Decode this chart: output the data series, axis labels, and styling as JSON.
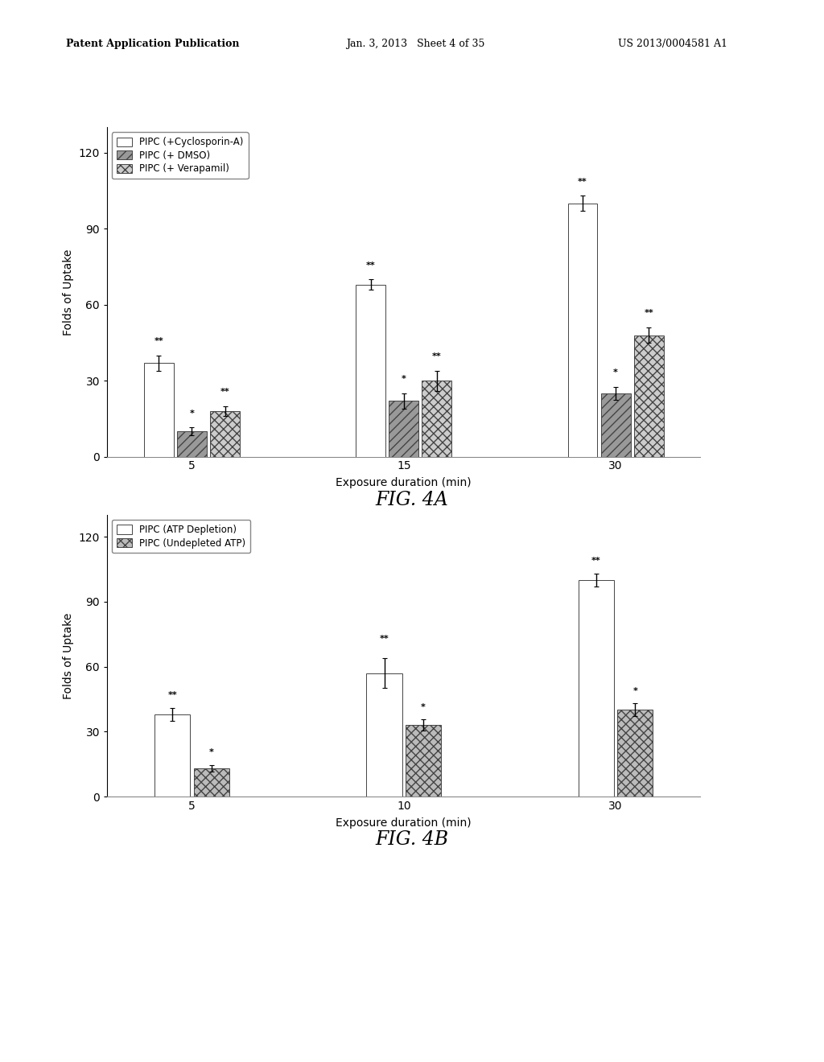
{
  "fig4a": {
    "title": "FIG. 4A",
    "xlabel": "Exposure duration (min)",
    "ylabel": "Folds of Uptake",
    "ylim": [
      0,
      130
    ],
    "yticks": [
      0,
      30,
      60,
      90,
      120
    ],
    "groups": [
      "5",
      "15",
      "30"
    ],
    "series": [
      {
        "label": "PIPC (+Cyclosporin-A)",
        "values": [
          37,
          68,
          100
        ],
        "errors": [
          3,
          2,
          3
        ],
        "color": "white",
        "hatch": "",
        "edgecolor": "#444444"
      },
      {
        "label": "PIPC (+ DMSO)",
        "values": [
          10,
          22,
          25
        ],
        "errors": [
          1.5,
          3,
          2.5
        ],
        "color": "#999999",
        "hatch": "///",
        "edgecolor": "#444444"
      },
      {
        "label": "PIPC (+ Verapamil)",
        "values": [
          18,
          30,
          48
        ],
        "errors": [
          2,
          4,
          3
        ],
        "color": "#cccccc",
        "hatch": "xxx",
        "edgecolor": "#444444"
      }
    ],
    "star_annotations": [
      {
        "group": 0,
        "series": 0,
        "text": "**",
        "yoffset": 4
      },
      {
        "group": 0,
        "series": 1,
        "text": "*",
        "yoffset": 4
      },
      {
        "group": 0,
        "series": 2,
        "text": "**",
        "yoffset": 4
      },
      {
        "group": 1,
        "series": 0,
        "text": "**",
        "yoffset": 4
      },
      {
        "group": 1,
        "series": 1,
        "text": "*",
        "yoffset": 4
      },
      {
        "group": 1,
        "series": 2,
        "text": "**",
        "yoffset": 4
      },
      {
        "group": 2,
        "series": 0,
        "text": "**",
        "yoffset": 4
      },
      {
        "group": 2,
        "series": 1,
        "text": "*",
        "yoffset": 4
      },
      {
        "group": 2,
        "series": 2,
        "text": "**",
        "yoffset": 4
      }
    ]
  },
  "fig4b": {
    "title": "FIG. 4B",
    "xlabel": "Exposure duration (min)",
    "ylabel": "Folds of Uptake",
    "ylim": [
      0,
      130
    ],
    "yticks": [
      0,
      30,
      60,
      90,
      120
    ],
    "groups": [
      "5",
      "10",
      "30"
    ],
    "series": [
      {
        "label": "PIPC (ATP Depletion)",
        "values": [
          38,
          57,
          100
        ],
        "errors": [
          3,
          7,
          3
        ],
        "color": "white",
        "hatch": "",
        "edgecolor": "#444444"
      },
      {
        "label": "PIPC (Undepleted ATP)",
        "values": [
          13,
          33,
          40
        ],
        "errors": [
          1.5,
          2.5,
          3
        ],
        "color": "#bbbbbb",
        "hatch": "xxx",
        "edgecolor": "#444444"
      }
    ],
    "star_annotations": [
      {
        "group": 0,
        "series": 0,
        "text": "**",
        "yoffset": 4
      },
      {
        "group": 0,
        "series": 1,
        "text": "*",
        "yoffset": 4
      },
      {
        "group": 1,
        "series": 0,
        "text": "**",
        "yoffset": 7
      },
      {
        "group": 1,
        "series": 1,
        "text": "*",
        "yoffset": 4
      },
      {
        "group": 2,
        "series": 0,
        "text": "**",
        "yoffset": 4
      },
      {
        "group": 2,
        "series": 1,
        "text": "*",
        "yoffset": 4
      }
    ]
  },
  "header_left": "Patent Application Publication",
  "header_mid": "Jan. 3, 2013   Sheet 4 of 35",
  "header_right": "US 2013/0004581 A1",
  "background_color": "#ffffff",
  "bar_width": 0.35,
  "group_centers_4a": [
    0,
    2.5,
    5.0
  ],
  "group_centers_4b": [
    0,
    2.5,
    5.0
  ]
}
